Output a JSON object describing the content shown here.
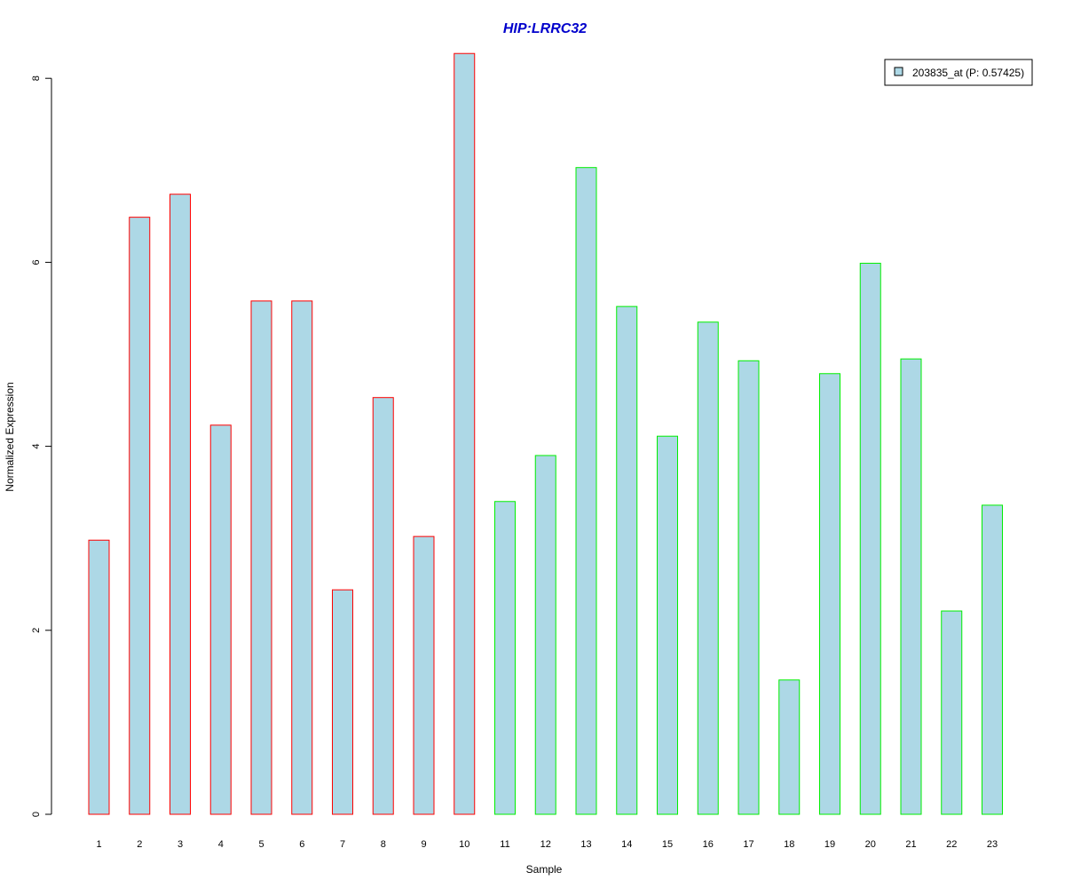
{
  "chart_data": {
    "type": "bar",
    "title": "HIP:LRRC32",
    "xlabel": "Sample",
    "ylabel": "Normalized Expression",
    "ylim": [
      0,
      8.3
    ],
    "yticks": [
      0,
      2,
      4,
      6,
      8
    ],
    "categories": [
      "1",
      "2",
      "3",
      "4",
      "5",
      "6",
      "7",
      "8",
      "9",
      "10",
      "11",
      "12",
      "13",
      "14",
      "15",
      "16",
      "17",
      "18",
      "19",
      "20",
      "21",
      "22",
      "23"
    ],
    "series": [
      {
        "name": "203835_at (P: 0.57425)",
        "values": [
          2.98,
          6.49,
          6.74,
          4.23,
          5.58,
          5.58,
          2.44,
          4.53,
          3.02,
          8.27,
          3.4,
          3.9,
          7.03,
          5.52,
          4.11,
          5.35,
          4.93,
          1.46,
          4.79,
          5.99,
          4.95,
          2.21,
          3.36
        ],
        "group": [
          "a",
          "a",
          "a",
          "a",
          "a",
          "a",
          "a",
          "a",
          "a",
          "a",
          "b",
          "b",
          "b",
          "b",
          "b",
          "b",
          "b",
          "b",
          "b",
          "b",
          "b",
          "b",
          "b"
        ]
      }
    ],
    "colors": {
      "bar_fill": "#add8e6",
      "group_a_border": "#ff0000",
      "group_b_border": "#00ee00",
      "title": "#0000cc"
    },
    "legend": {
      "position": "top-right",
      "label": "203835_at (P: 0.57425)"
    },
    "grid": false
  }
}
